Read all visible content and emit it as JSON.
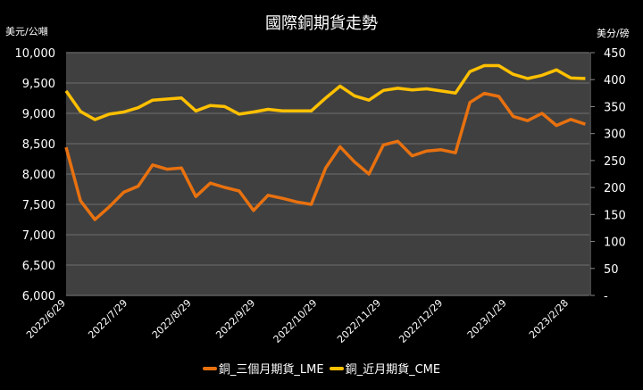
{
  "chart_data": {
    "type": "line",
    "title": "國際銅期貨走勢",
    "y_left_label": "美元/公噸",
    "y_right_label": "美分/磅",
    "ylim_left": [
      6000,
      10000
    ],
    "ylim_right": [
      0,
      450
    ],
    "yticks_left": [
      "6,000",
      "6,500",
      "7,000",
      "7,500",
      "8,000",
      "8,500",
      "9,000",
      "9,500",
      "10,000"
    ],
    "yticks_right": [
      "-",
      "50",
      "100",
      "150",
      "200",
      "250",
      "300",
      "350",
      "400",
      "450"
    ],
    "xlim": [
      "2022-06-29",
      "2023-03-10"
    ],
    "xticks": [
      {
        "date": "2022-06-29",
        "label": "2022/6/29"
      },
      {
        "date": "2022-07-29",
        "label": "2022/7/29"
      },
      {
        "date": "2022-08-29",
        "label": "2022/8/29"
      },
      {
        "date": "2022-09-29",
        "label": "2022/9/29"
      },
      {
        "date": "2022-10-29",
        "label": "2022/10/29"
      },
      {
        "date": "2022-11-29",
        "label": "2022/11/29"
      },
      {
        "date": "2022-12-29",
        "label": "2022/12/29"
      },
      {
        "date": "2023-01-29",
        "label": "2023/1/29"
      },
      {
        "date": "2023-02-28",
        "label": "2023/2/28"
      }
    ],
    "grid": true,
    "legend_position": "bottom",
    "dates": [
      "2022-06-29",
      "2022-07-06",
      "2022-07-13",
      "2022-07-20",
      "2022-07-27",
      "2022-08-03",
      "2022-08-10",
      "2022-08-17",
      "2022-08-24",
      "2022-08-31",
      "2022-09-07",
      "2022-09-14",
      "2022-09-21",
      "2022-09-28",
      "2022-10-05",
      "2022-10-12",
      "2022-10-19",
      "2022-10-26",
      "2022-11-02",
      "2022-11-09",
      "2022-11-16",
      "2022-11-23",
      "2022-11-30",
      "2022-12-07",
      "2022-12-14",
      "2022-12-21",
      "2022-12-28",
      "2023-01-04",
      "2023-01-11",
      "2023-01-18",
      "2023-01-25",
      "2023-02-01",
      "2023-02-08",
      "2023-02-15",
      "2023-02-22",
      "2023-03-01",
      "2023-03-08"
    ],
    "series": [
      {
        "name": "銅_三個月期貨_LME",
        "axis": "left",
        "color": "#e8710f",
        "values": [
          8440,
          7560,
          7250,
          7460,
          7700,
          7800,
          8150,
          8080,
          8100,
          7630,
          7850,
          7780,
          7720,
          7400,
          7650,
          7600,
          7540,
          7500,
          8100,
          8450,
          8200,
          8000,
          8480,
          8540,
          8300,
          8380,
          8400,
          8350,
          9180,
          9330,
          9280,
          8950,
          8880,
          9000,
          8800,
          8900,
          8820
        ]
      },
      {
        "name": "銅_近月期貨_CME",
        "axis": "right",
        "color": "#ffc000",
        "values": [
          379,
          341,
          326,
          336,
          340,
          348,
          362,
          364,
          366,
          342,
          352,
          350,
          336,
          340,
          345,
          342,
          342,
          342,
          366,
          388,
          370,
          362,
          380,
          384,
          381,
          383,
          379,
          375,
          415,
          426,
          426,
          410,
          402,
          408,
          418,
          403,
          402
        ]
      }
    ]
  },
  "colors": {
    "background": "#000000",
    "plot_background": "#404040",
    "grid": "#5f5f5f"
  }
}
